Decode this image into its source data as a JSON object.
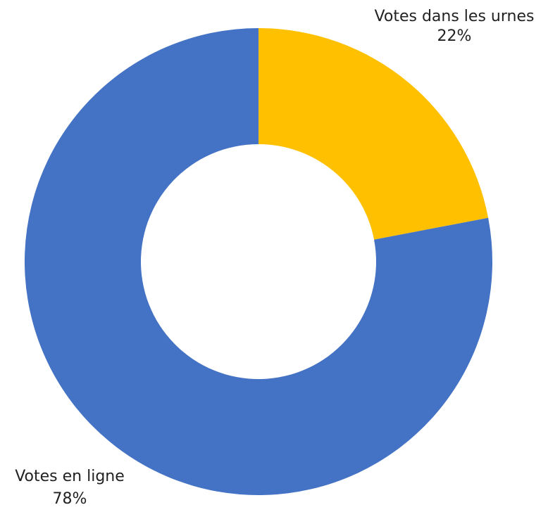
{
  "chart_data": {
    "type": "pie",
    "subtype": "donut",
    "title": "",
    "categories": [
      "Votes dans les urnes",
      "Votes en ligne"
    ],
    "values": [
      22,
      78
    ],
    "value_labels": [
      "22%",
      "78%"
    ],
    "colors": [
      "#FFC000",
      "#4472C4"
    ],
    "legend": "none"
  }
}
